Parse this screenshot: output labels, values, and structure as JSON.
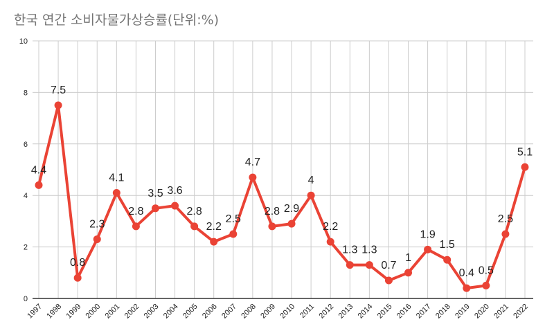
{
  "chart_data": {
    "type": "line",
    "title": "한국 연간 소비자물가상승률(단위:%)",
    "xlabel": "",
    "ylabel": "",
    "categories": [
      "1997",
      "1998",
      "1999",
      "2000",
      "2001",
      "2002",
      "2003",
      "2004",
      "2005",
      "2006",
      "2007",
      "2008",
      "2009",
      "2010",
      "2011",
      "2012",
      "2013",
      "2014",
      "2015",
      "2016",
      "2017",
      "2018",
      "2019",
      "2020",
      "2021",
      "2022"
    ],
    "values": [
      4.4,
      7.5,
      0.8,
      2.3,
      4.1,
      2.8,
      3.5,
      3.6,
      2.8,
      2.2,
      2.5,
      4.7,
      2.8,
      2.9,
      4,
      2.2,
      1.3,
      1.3,
      0.7,
      1,
      1.9,
      1.5,
      0.4,
      0.5,
      2.5,
      5.1
    ],
    "ylim": [
      0,
      10
    ],
    "yticks": [
      0,
      2,
      4,
      6,
      8,
      10
    ],
    "grid": true,
    "data_labels": true,
    "legend": "none",
    "color": "#ea4335"
  }
}
